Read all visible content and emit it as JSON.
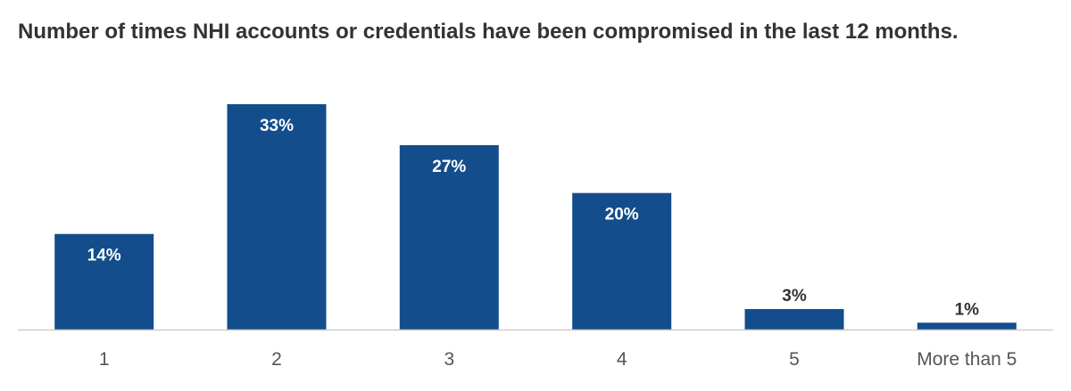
{
  "colors": {
    "bar": "#144d8c",
    "baseline": "#cccccc",
    "title": "#333333",
    "bar_label_inside": "#ffffff",
    "bar_label_outside": "#333333",
    "tick_label": "#555555"
  },
  "chart_data": {
    "type": "bar",
    "title": "Number of times NHI accounts or credentials have been compromised in the last 12 months.",
    "xlabel": "",
    "ylabel": "",
    "categories": [
      "1",
      "2",
      "3",
      "4",
      "5",
      "More than 5"
    ],
    "values": [
      14,
      33,
      27,
      20,
      3,
      1
    ],
    "data_labels": [
      "14%",
      "33%",
      "27%",
      "20%",
      "3%",
      "1%"
    ],
    "ylim": [
      0,
      33
    ],
    "grid": false,
    "legend": "none"
  }
}
